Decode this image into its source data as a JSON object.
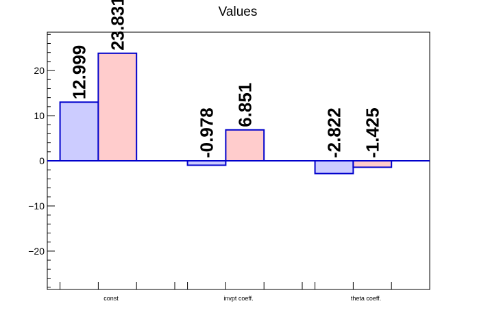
{
  "chart_data": {
    "type": "bar",
    "title": "Values",
    "xlabel": "",
    "ylabel": "",
    "categories": [
      "const",
      "invpt coeff.",
      "theta coeff."
    ],
    "series": [
      {
        "values": [
          12.999,
          -0.978,
          -2.822
        ],
        "labels": [
          "12.999",
          "-0.978",
          "-2.822"
        ],
        "fill": "#ccccff",
        "stroke": "#0000cc"
      },
      {
        "values": [
          23.831,
          6.851,
          -1.425
        ],
        "labels": [
          "23.831",
          "6.851",
          "-1.425"
        ],
        "fill": "#ffcccc",
        "stroke": "#0000cc"
      }
    ],
    "ylim": [
      -28.5,
      28.5
    ],
    "yticks": [
      -20,
      -10,
      0,
      10,
      20
    ],
    "ytick_labels": [
      "−20",
      "−10",
      "0",
      "10",
      "20"
    ],
    "grid": false,
    "legend": "none"
  }
}
